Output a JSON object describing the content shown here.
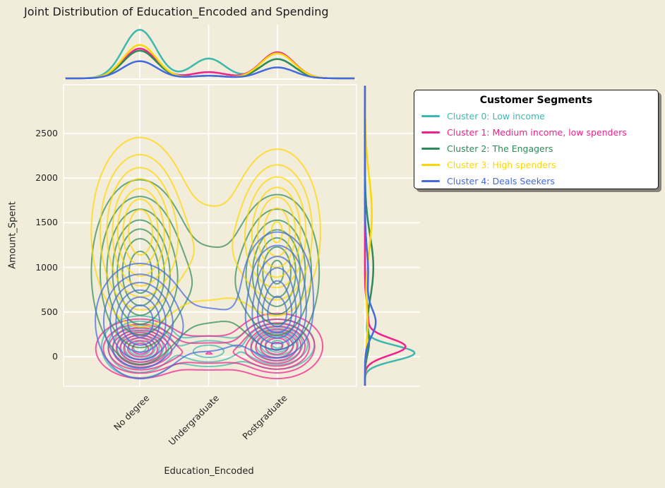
{
  "figure": {
    "background_color": "#F2ECDA",
    "grid_color": "#FFFFFF",
    "text_color": "#262626",
    "title_color": "#1B1B1B",
    "legend_bg": "#FFFFFF",
    "legend_border": "#111111"
  },
  "legend": {
    "title": "Customer Segments",
    "items": [
      {
        "label": "Cluster 0: Low income",
        "color": "#3CB8AE"
      },
      {
        "label": "Cluster 1: Medium income, low spenders",
        "color": "#F2208C"
      },
      {
        "label": "Cluster 2: The Engagers",
        "color": "#2E8B57"
      },
      {
        "label": "Cluster 3: High spenders",
        "color": "#FFD700"
      },
      {
        "label": "Cluster 4: Deals Seekers",
        "color": "#4169E1"
      }
    ]
  },
  "chart_data": {
    "type": "kde-joint",
    "title": "Joint Distribution of Education_Encoded and Spending",
    "xlabel": "Education_Encoded",
    "ylabel": "Amount_Spent",
    "categories": [
      "No degree",
      "Undergraduate",
      "Postgraduate"
    ],
    "category_positions": [
      0,
      1,
      2
    ],
    "y_ticks": [
      0,
      500,
      1000,
      1500,
      2000,
      2500
    ],
    "xlim": [
      -1.11,
      3.15
    ],
    "ylim": [
      -330,
      3050
    ],
    "grid": true,
    "legend_position": "upper-right-outside",
    "series": [
      {
        "name": "Cluster 0: Low income",
        "kde_components": [
          {
            "x": 0,
            "y": 110,
            "sx": 0.24,
            "sy": 150,
            "w": 1.0
          },
          {
            "x": 2,
            "y": 140,
            "sx": 0.24,
            "sy": 125,
            "w": 0.85
          },
          {
            "x": 1,
            "y": 60,
            "sx": 0.3,
            "sy": 95,
            "w": 0.35
          }
        ],
        "contour_levels": [
          0.07,
          0.16,
          0.27,
          0.39,
          0.52,
          0.66,
          0.8,
          0.92
        ],
        "top_marginal": [
          {
            "c": 0,
            "s": 0.24,
            "h": 0.93
          },
          {
            "c": 1,
            "s": 0.24,
            "h": 0.38
          },
          {
            "c": 2,
            "s": 0.24,
            "h": 0.37
          }
        ],
        "right_marginal": [
          {
            "c": 40,
            "s": 85,
            "h": 0.95
          },
          {
            "c": 480,
            "s": 170,
            "h": 0.05
          }
        ]
      },
      {
        "name": "Cluster 1: Medium income, low spenders",
        "kde_components": [
          {
            "x": 0,
            "y": 90,
            "sx": 0.26,
            "sy": 135,
            "w": 1.0
          },
          {
            "x": 2,
            "y": 120,
            "sx": 0.27,
            "sy": 150,
            "w": 0.95
          },
          {
            "x": 1,
            "y": 40,
            "sx": 0.5,
            "sy": 110,
            "w": 0.22
          }
        ],
        "contour_levels": [
          0.05,
          0.13,
          0.22,
          0.32,
          0.43,
          0.55,
          0.68,
          0.81,
          0.93
        ],
        "top_marginal": [
          {
            "c": 0,
            "s": 0.24,
            "h": 0.57
          },
          {
            "c": 1,
            "s": 0.26,
            "h": 0.12
          },
          {
            "c": 2,
            "s": 0.24,
            "h": 0.5
          }
        ],
        "right_marginal": [
          {
            "c": 110,
            "s": 95,
            "h": 0.77
          },
          {
            "c": 430,
            "s": 160,
            "h": 0.06
          }
        ]
      },
      {
        "name": "Cluster 2: The Engagers",
        "kde_components": [
          {
            "x": 0,
            "y": 950,
            "sx": 0.32,
            "sy": 470,
            "w": 1.0
          },
          {
            "x": 2,
            "y": 950,
            "sx": 0.28,
            "sy": 400,
            "w": 0.93
          },
          {
            "x": 1,
            "y": 800,
            "sx": 0.5,
            "sy": 380,
            "w": 0.16
          }
        ],
        "contour_levels": [
          0.09,
          0.2,
          0.33,
          0.47,
          0.6,
          0.74,
          0.9
        ],
        "top_marginal": [
          {
            "c": 0,
            "s": 0.24,
            "h": 0.53
          },
          {
            "c": 1,
            "s": 0.26,
            "h": 0.05
          },
          {
            "c": 2,
            "s": 0.24,
            "h": 0.37
          }
        ],
        "right_marginal": [
          {
            "c": 1000,
            "s": 360,
            "h": 0.16
          },
          {
            "c": 150,
            "s": 130,
            "h": 0.07
          }
        ]
      },
      {
        "name": "Cluster 3: High spenders",
        "kde_components": [
          {
            "x": 0,
            "y": 1400,
            "sx": 0.32,
            "sy": 480,
            "w": 1.0
          },
          {
            "x": 2,
            "y": 1400,
            "sx": 0.29,
            "sy": 430,
            "w": 0.9
          },
          {
            "x": 1,
            "y": 1150,
            "sx": 0.52,
            "sy": 450,
            "w": 0.17
          }
        ],
        "contour_levels": [
          0.09,
          0.2,
          0.33,
          0.47,
          0.61,
          0.76,
          0.89
        ],
        "top_marginal": [
          {
            "c": 0,
            "s": 0.24,
            "h": 0.64
          },
          {
            "c": 1,
            "s": 0.26,
            "h": 0.05
          },
          {
            "c": 2,
            "s": 0.24,
            "h": 0.48
          }
        ],
        "right_marginal": [
          {
            "c": 1600,
            "s": 420,
            "h": 0.13
          },
          {
            "c": 350,
            "s": 200,
            "h": 0.05
          }
        ]
      },
      {
        "name": "Cluster 4: Deals Seekers",
        "kde_components": [
          {
            "x": 0,
            "y": 400,
            "sx": 0.3,
            "sy": 300,
            "w": 1.0
          },
          {
            "x": 2,
            "y": 750,
            "sx": 0.26,
            "sy": 330,
            "w": 0.68
          },
          {
            "x": 2,
            "y": 400,
            "sx": 0.22,
            "sy": 185,
            "w": 0.55
          },
          {
            "x": 1,
            "y": 300,
            "sx": 0.5,
            "sy": 260,
            "w": 0.15
          }
        ],
        "contour_levels": [
          0.1,
          0.22,
          0.36,
          0.52,
          0.68,
          0.85
        ],
        "top_marginal": [
          {
            "c": 0,
            "s": 0.25,
            "h": 0.33
          },
          {
            "c": 1,
            "s": 0.26,
            "h": 0.05
          },
          {
            "c": 2,
            "s": 0.25,
            "h": 0.21
          }
        ],
        "right_marginal": [
          {
            "c": 380,
            "s": 155,
            "h": 0.2
          },
          {
            "c": 950,
            "s": 260,
            "h": 0.06
          }
        ]
      }
    ]
  }
}
